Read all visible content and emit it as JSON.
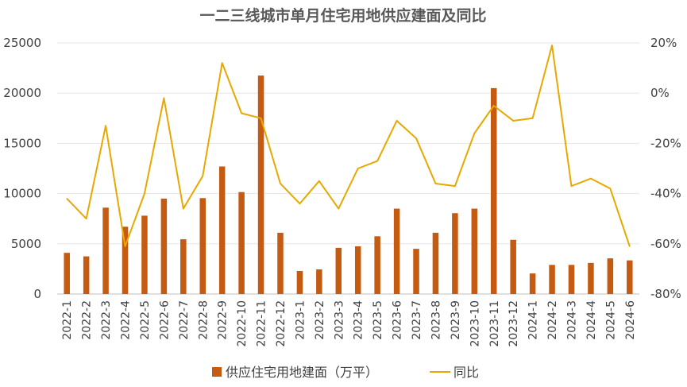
{
  "chart_data": {
    "type": "bar",
    "title": "一二三线城市单月住宅用地供应建面及同比",
    "categories": [
      "2022-1",
      "2022-2",
      "2022-3",
      "2022-4",
      "2022-5",
      "2022-6",
      "2022-7",
      "2022-8",
      "2022-9",
      "2022-10",
      "2022-11",
      "2022-12",
      "2023-1",
      "2023-2",
      "2023-3",
      "2023-4",
      "2023-5",
      "2023-6",
      "2023-7",
      "2023-8",
      "2023-9",
      "2023-10",
      "2023-11",
      "2023-12",
      "2024-1",
      "2024-2",
      "2024-3",
      "2024-4",
      "2024-5",
      "2024-6"
    ],
    "series": [
      {
        "name": "供应住宅用地建面（万平）",
        "type": "bar",
        "axis": "left",
        "color": "#c55a11",
        "values": [
          4100,
          3750,
          8600,
          6700,
          7800,
          9500,
          5450,
          9550,
          12700,
          10150,
          21750,
          6100,
          2300,
          2450,
          4600,
          4750,
          5750,
          8500,
          4500,
          6100,
          8050,
          8500,
          20500,
          5400,
          2050,
          2900,
          2900,
          3100,
          3550,
          3350
        ]
      },
      {
        "name": "同比",
        "type": "line",
        "axis": "right",
        "color": "#e8a800",
        "values": [
          -42,
          -50,
          -13,
          -61,
          -40,
          -2,
          -46,
          -33,
          12,
          -8,
          -10,
          -36,
          -44,
          -35,
          -46,
          -30,
          -27,
          -11,
          -18,
          -36,
          -37,
          -16,
          -5,
          -11,
          -10,
          19,
          -37,
          -34,
          -38,
          -61
        ]
      }
    ],
    "y_left": {
      "min": 0,
      "max": 25000,
      "step": 5000,
      "ticks": [
        "0",
        "5000",
        "10000",
        "15000",
        "20000",
        "25000"
      ]
    },
    "y_right": {
      "min": -80,
      "max": 20,
      "step": 20,
      "ticks": [
        "-80%",
        "-60%",
        "-40%",
        "-20%",
        "0%",
        "20%"
      ]
    },
    "grid": true,
    "legend_position": "bottom"
  }
}
